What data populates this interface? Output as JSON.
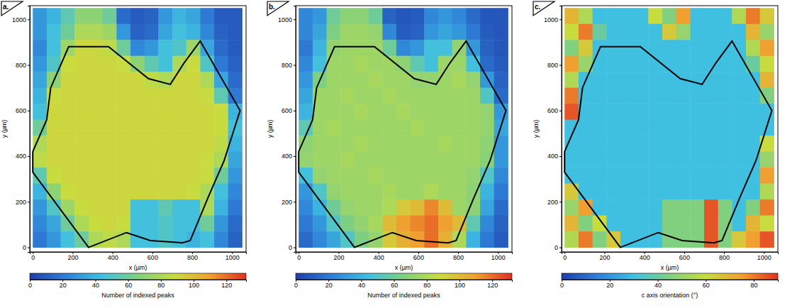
{
  "chart_data": [
    {
      "type": "heatmap",
      "panel": "a.",
      "xlabel": "x (µm)",
      "ylabel": "y (µm)",
      "xlim": [
        -15,
        1070
      ],
      "ylim": [
        -20,
        1060
      ],
      "xticks": [
        0,
        200,
        400,
        600,
        800,
        1000
      ],
      "yticks": [
        0,
        200,
        400,
        600,
        800,
        1000
      ],
      "x": [
        35,
        105,
        175,
        245,
        315,
        385,
        455,
        525,
        595,
        665,
        735,
        805,
        875,
        945,
        1015
      ],
      "y": [
        1015,
        945,
        875,
        805,
        735,
        665,
        595,
        525,
        455,
        385,
        315,
        245,
        175,
        105,
        35
      ],
      "cells": [
        [
          30,
          40,
          55,
          70,
          70,
          60,
          15,
          10,
          12,
          30,
          40,
          35,
          20,
          10,
          10
        ],
        [
          30,
          45,
          60,
          80,
          80,
          75,
          30,
          12,
          15,
          35,
          45,
          40,
          25,
          12,
          10
        ],
        [
          25,
          45,
          75,
          90,
          90,
          85,
          60,
          25,
          30,
          45,
          50,
          75,
          35,
          15,
          10
        ],
        [
          30,
          50,
          88,
          90,
          90,
          90,
          88,
          70,
          55,
          45,
          80,
          88,
          50,
          20,
          12
        ],
        [
          35,
          70,
          90,
          90,
          90,
          90,
          90,
          90,
          85,
          80,
          90,
          90,
          80,
          35,
          15
        ],
        [
          40,
          88,
          90,
          90,
          90,
          90,
          90,
          90,
          90,
          90,
          90,
          90,
          88,
          55,
          20
        ],
        [
          45,
          90,
          90,
          90,
          90,
          90,
          90,
          90,
          90,
          90,
          90,
          90,
          90,
          88,
          40
        ],
        [
          60,
          90,
          90,
          90,
          90,
          90,
          90,
          90,
          90,
          90,
          90,
          90,
          90,
          88,
          45
        ],
        [
          80,
          90,
          90,
          90,
          90,
          90,
          90,
          90,
          90,
          90,
          90,
          90,
          90,
          85,
          40
        ],
        [
          85,
          90,
          90,
          90,
          90,
          90,
          90,
          90,
          90,
          90,
          90,
          90,
          88,
          80,
          35
        ],
        [
          55,
          88,
          90,
          90,
          90,
          90,
          90,
          90,
          90,
          90,
          90,
          90,
          88,
          60,
          30
        ],
        [
          40,
          70,
          88,
          90,
          90,
          90,
          90,
          90,
          90,
          90,
          90,
          88,
          80,
          45,
          25
        ],
        [
          30,
          50,
          75,
          88,
          90,
          90,
          90,
          45,
          45,
          55,
          45,
          45,
          80,
          40,
          20
        ],
        [
          25,
          35,
          60,
          80,
          88,
          90,
          88,
          45,
          45,
          50,
          45,
          45,
          60,
          30,
          15
        ],
        [
          20,
          30,
          45,
          60,
          80,
          85,
          80,
          45,
          45,
          50,
          45,
          40,
          45,
          25,
          12
        ]
      ],
      "colorbar": {
        "range": [
          0,
          132
        ],
        "ticks": [
          0,
          20,
          40,
          60,
          80,
          100,
          120
        ],
        "label": "Number of indexed peaks"
      },
      "outline": {
        "x": [
          280,
          0,
          0,
          70,
          90,
          180,
          380,
          580,
          690,
          760,
          840,
          1040,
          960,
          880,
          790,
          750,
          590,
          470
        ],
        "y": [
          0,
          330,
          420,
          560,
          700,
          880,
          880,
          740,
          715,
          810,
          905,
          600,
          380,
          220,
          30,
          20,
          30,
          65
        ]
      }
    },
    {
      "type": "heatmap",
      "panel": "b.",
      "xlabel": "x (µm)",
      "ylabel": "y (µm)",
      "xlim": [
        -15,
        1070
      ],
      "ylim": [
        -20,
        1060
      ],
      "xticks": [
        0,
        200,
        400,
        600,
        800,
        1000
      ],
      "yticks": [
        0,
        200,
        400,
        600,
        800,
        1000
      ],
      "x": [
        35,
        105,
        175,
        245,
        315,
        385,
        455,
        525,
        595,
        665,
        735,
        805,
        875,
        945,
        1015
      ],
      "y": [
        1015,
        945,
        875,
        805,
        735,
        665,
        595,
        525,
        455,
        385,
        315,
        245,
        175,
        105,
        35
      ],
      "cells": [
        [
          25,
          30,
          60,
          70,
          70,
          60,
          12,
          8,
          10,
          25,
          30,
          25,
          15,
          8,
          8
        ],
        [
          25,
          35,
          65,
          75,
          75,
          72,
          25,
          10,
          12,
          30,
          35,
          30,
          20,
          10,
          8
        ],
        [
          20,
          40,
          72,
          75,
          75,
          75,
          60,
          25,
          30,
          45,
          45,
          72,
          30,
          12,
          8
        ],
        [
          25,
          45,
          75,
          75,
          78,
          75,
          75,
          70,
          55,
          45,
          75,
          75,
          45,
          15,
          10
        ],
        [
          30,
          65,
          75,
          75,
          75,
          78,
          75,
          75,
          72,
          72,
          75,
          78,
          72,
          30,
          12
        ],
        [
          35,
          75,
          75,
          78,
          75,
          75,
          78,
          75,
          75,
          75,
          75,
          75,
          75,
          50,
          15
        ],
        [
          40,
          75,
          75,
          75,
          78,
          75,
          75,
          78,
          75,
          75,
          75,
          75,
          75,
          72,
          30
        ],
        [
          55,
          75,
          78,
          75,
          75,
          75,
          75,
          75,
          78,
          75,
          75,
          75,
          75,
          72,
          35
        ],
        [
          70,
          75,
          75,
          75,
          78,
          75,
          75,
          75,
          75,
          75,
          78,
          75,
          75,
          70,
          30
        ],
        [
          72,
          75,
          75,
          78,
          75,
          75,
          75,
          75,
          75,
          75,
          75,
          75,
          75,
          68,
          30
        ],
        [
          45,
          72,
          75,
          75,
          75,
          78,
          75,
          75,
          75,
          75,
          75,
          75,
          72,
          50,
          25
        ],
        [
          30,
          50,
          72,
          75,
          75,
          75,
          78,
          75,
          75,
          80,
          75,
          75,
          70,
          40,
          20
        ],
        [
          25,
          40,
          60,
          72,
          75,
          75,
          80,
          95,
          100,
          115,
          100,
          75,
          70,
          35,
          15
        ],
        [
          20,
          30,
          50,
          65,
          72,
          78,
          100,
          110,
          115,
          120,
          110,
          100,
          55,
          25,
          12
        ],
        [
          15,
          25,
          35,
          50,
          65,
          72,
          95,
          105,
          110,
          120,
          105,
          80,
          40,
          20,
          10
        ]
      ],
      "colorbar": {
        "range": [
          0,
          132
        ],
        "ticks": [
          0,
          20,
          40,
          60,
          80,
          100,
          120
        ],
        "label": "Number of indexed peaks"
      },
      "outline": {
        "x": [
          280,
          0,
          0,
          70,
          90,
          180,
          380,
          580,
          690,
          760,
          840,
          1040,
          960,
          880,
          790,
          750,
          590,
          470
        ],
        "y": [
          0,
          330,
          420,
          560,
          700,
          880,
          880,
          740,
          715,
          810,
          905,
          600,
          380,
          220,
          30,
          20,
          30,
          65
        ]
      }
    },
    {
      "type": "heatmap",
      "panel": "c.",
      "xlabel": "x (µm)",
      "ylabel": "y (µm)",
      "xlim": [
        -15,
        1070
      ],
      "ylim": [
        -20,
        1060
      ],
      "xticks": [
        0,
        200,
        400,
        600,
        800,
        1000
      ],
      "yticks": [
        0,
        200,
        400,
        600,
        800,
        1000
      ],
      "x": [
        35,
        105,
        175,
        245,
        315,
        385,
        455,
        525,
        595,
        665,
        735,
        805,
        875,
        945,
        1015
      ],
      "y": [
        1015,
        945,
        875,
        805,
        735,
        665,
        595,
        525,
        455,
        385,
        315,
        245,
        175,
        105,
        35
      ],
      "cells": [
        [
          70,
          55,
          30,
          30,
          30,
          30,
          60,
          45,
          75,
          30,
          30,
          30,
          55,
          80,
          65
        ],
        [
          60,
          80,
          40,
          30,
          30,
          30,
          30,
          65,
          50,
          30,
          30,
          30,
          30,
          70,
          50
        ],
        [
          45,
          65,
          30,
          30,
          30,
          30,
          30,
          30,
          30,
          30,
          30,
          30,
          30,
          55,
          75
        ],
        [
          75,
          50,
          30,
          30,
          30,
          30,
          30,
          30,
          30,
          30,
          30,
          30,
          30,
          40,
          60
        ],
        [
          55,
          30,
          30,
          30,
          30,
          30,
          30,
          30,
          30,
          30,
          30,
          30,
          30,
          30,
          70
        ],
        [
          80,
          30,
          30,
          30,
          30,
          30,
          30,
          30,
          30,
          30,
          30,
          30,
          30,
          30,
          45
        ],
        [
          85,
          30,
          30,
          30,
          30,
          30,
          30,
          30,
          30,
          30,
          30,
          30,
          30,
          30,
          30
        ],
        [
          30,
          30,
          30,
          30,
          30,
          30,
          30,
          30,
          30,
          30,
          30,
          30,
          30,
          30,
          30
        ],
        [
          30,
          30,
          30,
          30,
          30,
          30,
          30,
          30,
          30,
          30,
          30,
          30,
          30,
          30,
          60
        ],
        [
          30,
          30,
          30,
          30,
          30,
          30,
          30,
          30,
          30,
          30,
          30,
          30,
          30,
          30,
          50
        ],
        [
          30,
          30,
          30,
          30,
          30,
          30,
          30,
          30,
          30,
          30,
          30,
          30,
          30,
          30,
          75
        ],
        [
          65,
          30,
          30,
          30,
          30,
          30,
          30,
          30,
          30,
          30,
          30,
          30,
          30,
          30,
          55
        ],
        [
          50,
          75,
          30,
          30,
          30,
          30,
          30,
          45,
          45,
          45,
          85,
          45,
          30,
          45,
          80
        ],
        [
          70,
          45,
          60,
          30,
          30,
          30,
          30,
          45,
          45,
          45,
          85,
          45,
          30,
          70,
          60
        ],
        [
          55,
          80,
          45,
          65,
          30,
          30,
          30,
          45,
          45,
          45,
          85,
          45,
          65,
          75,
          85
        ]
      ],
      "colorbar": {
        "range": [
          0,
          90
        ],
        "ticks": [
          0,
          20,
          40,
          60,
          80
        ],
        "label": "c axis orientation (°)"
      },
      "outline": {
        "x": [
          280,
          0,
          0,
          70,
          90,
          180,
          380,
          580,
          690,
          760,
          840,
          1040,
          960,
          880,
          790,
          750,
          590,
          470
        ],
        "y": [
          0,
          330,
          420,
          560,
          700,
          880,
          880,
          740,
          715,
          810,
          905,
          600,
          380,
          220,
          30,
          20,
          30,
          65
        ]
      }
    }
  ]
}
